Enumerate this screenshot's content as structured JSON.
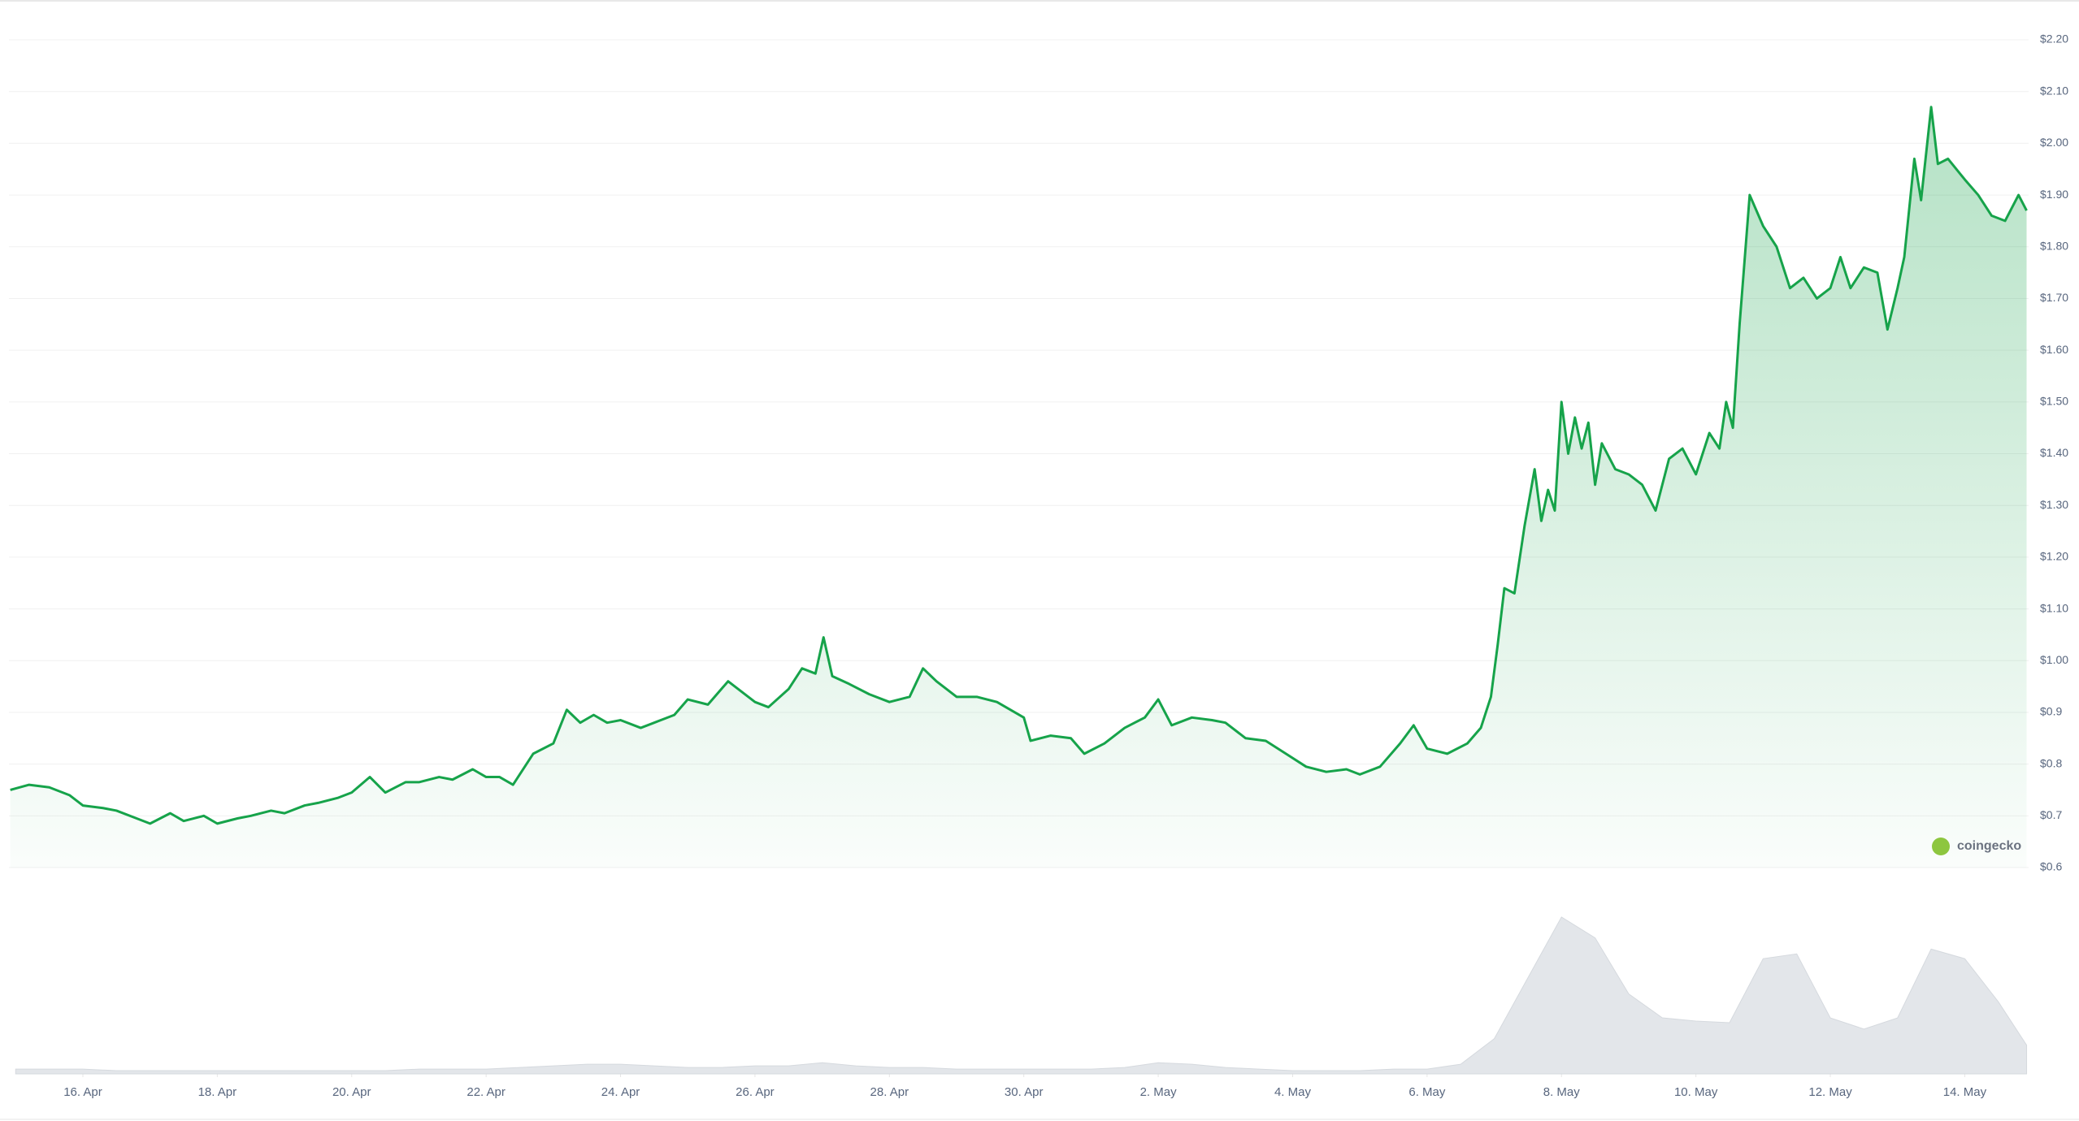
{
  "chart_data": {
    "type": "line",
    "color": "#16a34a",
    "grid": true,
    "watermark": "coingecko",
    "x": [
      14.92,
      15.2,
      15.5,
      15.8,
      16,
      16.3,
      16.5,
      16.8,
      17,
      17.3,
      17.5,
      17.8,
      18,
      18.3,
      18.5,
      18.8,
      19,
      19.3,
      19.5,
      19.8,
      20,
      20.27,
      20.5,
      20.8,
      21,
      21.3,
      21.5,
      21.8,
      22,
      22.2,
      22.4,
      22.7,
      23,
      23.2,
      23.4,
      23.6,
      23.8,
      24,
      24.3,
      24.5,
      24.8,
      25,
      25.3,
      25.6,
      25.8,
      26,
      26.2,
      26.5,
      26.7,
      26.9,
      27.02,
      27.15,
      27.4,
      27.7,
      28,
      28.3,
      28.5,
      28.7,
      29,
      29.3,
      29.6,
      30,
      30.1,
      30.4,
      30.7,
      30.9,
      31.2,
      31.5,
      31.8,
      32,
      32.2,
      32.5,
      32.8,
      33,
      33.3,
      33.6,
      33.9,
      34.2,
      34.5,
      34.8,
      35,
      35.3,
      35.6,
      35.8,
      36,
      36.3,
      36.6,
      36.8,
      36.95,
      37.05,
      37.15,
      37.3,
      37.45,
      37.6,
      37.7,
      37.8,
      37.9,
      38,
      38.1,
      38.2,
      38.3,
      38.4,
      38.5,
      38.6,
      38.8,
      39,
      39.2,
      39.4,
      39.6,
      39.8,
      40,
      40.2,
      40.35,
      40.45,
      40.55,
      40.65,
      40.8,
      41,
      41.2,
      41.4,
      41.6,
      41.8,
      42,
      42.15,
      42.3,
      42.5,
      42.7,
      42.85,
      43,
      43.1,
      43.25,
      43.35,
      43.5,
      43.6,
      43.75,
      44,
      44.2,
      44.4,
      44.6,
      44.8,
      44.92
    ],
    "values": [
      0.75,
      0.76,
      0.755,
      0.74,
      0.72,
      0.715,
      0.71,
      0.695,
      0.685,
      0.705,
      0.69,
      0.7,
      0.685,
      0.695,
      0.7,
      0.71,
      0.705,
      0.72,
      0.725,
      0.735,
      0.745,
      0.775,
      0.745,
      0.765,
      0.765,
      0.775,
      0.77,
      0.79,
      0.775,
      0.775,
      0.76,
      0.82,
      0.84,
      0.905,
      0.88,
      0.895,
      0.88,
      0.885,
      0.87,
      0.88,
      0.895,
      0.925,
      0.915,
      0.96,
      0.94,
      0.92,
      0.91,
      0.945,
      0.985,
      0.975,
      1.045,
      0.97,
      0.955,
      0.935,
      0.92,
      0.93,
      0.985,
      0.96,
      0.93,
      0.93,
      0.92,
      0.89,
      0.845,
      0.855,
      0.85,
      0.82,
      0.84,
      0.87,
      0.89,
      0.925,
      0.875,
      0.89,
      0.885,
      0.88,
      0.85,
      0.845,
      0.82,
      0.795,
      0.785,
      0.79,
      0.78,
      0.795,
      0.84,
      0.875,
      0.83,
      0.82,
      0.84,
      0.87,
      0.93,
      1.03,
      1.14,
      1.13,
      1.26,
      1.37,
      1.27,
      1.33,
      1.29,
      1.5,
      1.4,
      1.47,
      1.41,
      1.46,
      1.34,
      1.42,
      1.37,
      1.36,
      1.34,
      1.29,
      1.39,
      1.41,
      1.36,
      1.44,
      1.41,
      1.5,
      1.45,
      1.65,
      1.9,
      1.84,
      1.8,
      1.72,
      1.74,
      1.7,
      1.72,
      1.78,
      1.72,
      1.76,
      1.75,
      1.64,
      1.72,
      1.78,
      1.97,
      1.89,
      2.07,
      1.96,
      1.97,
      1.93,
      1.9,
      1.86,
      1.85,
      1.9,
      1.87
    ],
    "xlim": [
      14.9,
      44.95
    ],
    "ylim": [
      0.6,
      2.2
    ],
    "yticks": [
      {
        "value": 2.2,
        "label": "$2.20"
      },
      {
        "value": 2.1,
        "label": "$2.10"
      },
      {
        "value": 2.0,
        "label": "$2.00"
      },
      {
        "value": 1.9,
        "label": "$1.90"
      },
      {
        "value": 1.8,
        "label": "$1.80"
      },
      {
        "value": 1.7,
        "label": "$1.70"
      },
      {
        "value": 1.6,
        "label": "$1.60"
      },
      {
        "value": 1.5,
        "label": "$1.50"
      },
      {
        "value": 1.4,
        "label": "$1.40"
      },
      {
        "value": 1.3,
        "label": "$1.30"
      },
      {
        "value": 1.2,
        "label": "$1.20"
      },
      {
        "value": 1.1,
        "label": "$1.10"
      },
      {
        "value": 1.0,
        "label": "$1.00"
      },
      {
        "value": 0.9,
        "label": "$0.9"
      },
      {
        "value": 0.8,
        "label": "$0.8"
      },
      {
        "value": 0.7,
        "label": "$0.7"
      },
      {
        "value": 0.6,
        "label": "$0.6"
      }
    ],
    "xticks": [
      {
        "value": 16,
        "label": "16. Apr"
      },
      {
        "value": 18,
        "label": "18. Apr"
      },
      {
        "value": 20,
        "label": "20. Apr"
      },
      {
        "value": 22,
        "label": "22. Apr"
      },
      {
        "value": 24,
        "label": "24. Apr"
      },
      {
        "value": 26,
        "label": "26. Apr"
      },
      {
        "value": 28,
        "label": "28. Apr"
      },
      {
        "value": 30,
        "label": "30. Apr"
      },
      {
        "value": 32,
        "label": "2. May"
      },
      {
        "value": 34,
        "label": "4. May"
      },
      {
        "value": 36,
        "label": "6. May"
      },
      {
        "value": 38,
        "label": "8. May"
      },
      {
        "value": 40,
        "label": "10. May"
      },
      {
        "value": 42,
        "label": "12. May"
      },
      {
        "value": 44,
        "label": "14. May"
      }
    ],
    "volume": {
      "color": "#e3e6ea",
      "ylim": [
        0,
        100
      ],
      "x": [
        15,
        15.5,
        16,
        16.5,
        17,
        17.5,
        18,
        18.5,
        19,
        19.5,
        20,
        20.5,
        21,
        21.5,
        22,
        22.5,
        23,
        23.5,
        24,
        24.5,
        25,
        25.5,
        26,
        26.5,
        27,
        27.5,
        28,
        28.5,
        29,
        29.5,
        30,
        30.5,
        31,
        31.5,
        32,
        32.5,
        33,
        33.5,
        34,
        34.5,
        35,
        35.5,
        36,
        36.5,
        37,
        37.5,
        38,
        38.5,
        39,
        39.5,
        40,
        40.5,
        41,
        41.5,
        42,
        42.5,
        43,
        43.5,
        44,
        44.5,
        44.92
      ],
      "values": [
        3,
        3,
        3,
        2,
        2,
        2,
        2,
        2,
        2,
        2,
        2,
        2,
        3,
        3,
        3,
        4,
        5,
        6,
        6,
        5,
        4,
        4,
        5,
        5,
        7,
        5,
        4,
        4,
        3,
        3,
        3,
        3,
        3,
        4,
        7,
        6,
        4,
        3,
        2,
        2,
        2,
        3,
        3,
        6,
        22,
        60,
        98,
        85,
        50,
        35,
        33,
        32,
        72,
        75,
        35,
        28,
        35,
        78,
        72,
        45,
        18
      ]
    }
  }
}
